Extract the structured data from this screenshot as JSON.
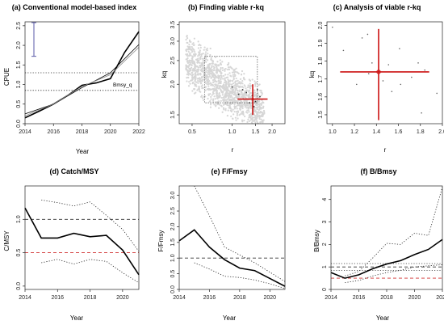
{
  "chart_data": [
    {
      "id": "a",
      "type": "line",
      "title": "(a) Conventional model-based index",
      "xlabel": "Year",
      "ylabel": "CPUE",
      "xlim": [
        2014,
        2022
      ],
      "ylim": [
        0,
        2.6
      ],
      "xticks": [
        2014,
        2016,
        2018,
        2020,
        2022
      ],
      "yticks": [
        0.0,
        0.5,
        1.0,
        1.5,
        2.0,
        2.5
      ],
      "series": [
        {
          "style": "solid-thick",
          "x": [
            2014,
            2015,
            2016,
            2017,
            2018,
            2019,
            2020,
            2021,
            2022
          ],
          "y": [
            0.15,
            0.32,
            0.5,
            0.72,
            0.98,
            1.04,
            1.15,
            1.82,
            2.35
          ]
        },
        {
          "style": "solid-thin",
          "x": [
            2014,
            2016,
            2018,
            2020,
            2022
          ],
          "y": [
            0.25,
            0.5,
            0.92,
            1.3,
            2.02
          ]
        },
        {
          "style": "solid-grey",
          "x": [
            2014,
            2016,
            2018,
            2020,
            2022
          ],
          "y": [
            0.2,
            0.5,
            0.95,
            1.25,
            1.95
          ]
        }
      ],
      "hlines": [
        {
          "y": 1.3,
          "style": "dotted"
        },
        {
          "y": 0.85,
          "style": "dotted"
        }
      ],
      "errorbar": {
        "y_low": 1.72,
        "y_high": 2.58,
        "color": "#5a5aa8"
      },
      "annotations": [
        {
          "text": "Bmsy_q",
          "x": 2019.1,
          "y": 1.07
        }
      ]
    },
    {
      "id": "b",
      "type": "scatter",
      "title": "(b) Finding viable r-kq",
      "xlabel": "r",
      "ylabel": "kq",
      "xscale": "log",
      "yscale": "log",
      "xlim": [
        0.4,
        2.5
      ],
      "ylim": [
        1.38,
        3.6
      ],
      "xticks": [
        0.5,
        1.0,
        1.5,
        2.0
      ],
      "yticks": [
        1.5,
        2.0,
        2.5,
        3.0,
        3.5
      ],
      "box": {
        "x": [
          0.62,
          1.55
        ],
        "y": [
          1.68,
          2.6
        ]
      },
      "best": {
        "r": 1.43,
        "kq": 1.74,
        "r_ci": [
          1.1,
          1.85
        ],
        "kq_ci": [
          1.5,
          2.0
        ]
      },
      "viable_points": [
        [
          1.0,
          1.95
        ],
        [
          1.12,
          1.82
        ],
        [
          1.2,
          1.9
        ],
        [
          1.28,
          1.85
        ],
        [
          1.35,
          1.68
        ],
        [
          1.42,
          1.8
        ],
        [
          1.5,
          1.7
        ],
        [
          1.55,
          1.9
        ],
        [
          1.62,
          1.78
        ],
        [
          1.22,
          1.74
        ],
        [
          1.46,
          1.62
        ]
      ]
    },
    {
      "id": "c",
      "type": "scatter",
      "title": "(c) Analysis of viable r-kq",
      "xlabel": "r",
      "ylabel": "kq",
      "xlim": [
        0.95,
        2.0
      ],
      "ylim": [
        1.45,
        2.02
      ],
      "xticks": [
        1.0,
        1.2,
        1.4,
        1.6,
        1.8,
        2.0
      ],
      "yticks": [
        1.5,
        1.6,
        1.7,
        1.8,
        1.9,
        2.0
      ],
      "best": {
        "r": 1.42,
        "kq": 1.74,
        "r_ci": [
          1.07,
          1.88
        ],
        "kq_ci": [
          1.47,
          1.98
        ]
      },
      "points": [
        [
          1.0,
          1.99
        ],
        [
          1.27,
          1.93
        ],
        [
          1.32,
          1.95
        ],
        [
          1.1,
          1.86
        ],
        [
          1.61,
          1.87
        ],
        [
          1.78,
          1.79
        ],
        [
          1.33,
          1.73
        ],
        [
          1.46,
          1.69
        ],
        [
          1.54,
          1.63
        ],
        [
          1.72,
          1.71
        ],
        [
          1.84,
          1.75
        ],
        [
          1.22,
          1.67
        ],
        [
          1.51,
          1.78
        ],
        [
          1.62,
          1.67
        ],
        [
          1.95,
          1.62
        ],
        [
          1.81,
          1.51
        ],
        [
          1.36,
          1.79
        ]
      ]
    },
    {
      "id": "d",
      "type": "line",
      "title": "(d) Catch/MSY",
      "xlabel": "Year",
      "ylabel": "C/MSY",
      "xlim": [
        2014,
        2021
      ],
      "ylim": [
        -0.05,
        1.5
      ],
      "xticks": [
        2014,
        2016,
        2018,
        2020
      ],
      "yticks": [
        0.0,
        0.5,
        1.0
      ],
      "series": [
        {
          "style": "solid-thick",
          "x": [
            2014,
            2015,
            2016,
            2017,
            2018,
            2019,
            2020,
            2021
          ],
          "y": [
            1.17,
            0.72,
            0.72,
            0.79,
            0.74,
            0.76,
            0.54,
            0.17
          ]
        },
        {
          "style": "dotted",
          "x": [
            2015,
            2016,
            2017,
            2018,
            2019,
            2020,
            2021
          ],
          "y": [
            1.29,
            1.25,
            1.2,
            1.26,
            1.06,
            0.85,
            0.52
          ]
        },
        {
          "style": "dotted",
          "x": [
            2015,
            2016,
            2017,
            2018,
            2019,
            2020,
            2021
          ],
          "y": [
            0.35,
            0.4,
            0.33,
            0.4,
            0.37,
            0.2,
            0.05
          ]
        }
      ],
      "hlines": [
        {
          "y": 1.0,
          "style": "dashed",
          "color": "#333333"
        },
        {
          "y": 0.5,
          "style": "dashed",
          "color": "#d03030"
        }
      ]
    },
    {
      "id": "e",
      "type": "line",
      "title": "(e) F/Fmsy",
      "xlabel": "Year",
      "ylabel": "F/Fmsy",
      "xlim": [
        2014,
        2021
      ],
      "ylim": [
        0,
        3.3
      ],
      "xticks": [
        2014,
        2016,
        2018,
        2020
      ],
      "yticks": [
        0.0,
        0.5,
        1.0,
        1.5,
        2.0,
        2.5,
        3.0
      ],
      "series": [
        {
          "style": "solid-thick",
          "x": [
            2014,
            2015,
            2016,
            2017,
            2018,
            2019,
            2020,
            2021
          ],
          "y": [
            1.55,
            1.9,
            1.35,
            0.95,
            0.68,
            0.6,
            0.35,
            0.1
          ]
        },
        {
          "style": "dotted",
          "x": [
            2015,
            2016,
            2017,
            2018,
            2019,
            2020,
            2021
          ],
          "y": [
            3.3,
            2.35,
            1.35,
            1.1,
            0.85,
            0.55,
            0.25
          ]
        },
        {
          "style": "dotted",
          "x": [
            2015,
            2016,
            2017,
            2018,
            2019,
            2020,
            2021
          ],
          "y": [
            0.85,
            0.65,
            0.42,
            0.38,
            0.3,
            0.18,
            0.03
          ]
        }
      ],
      "hlines": [
        {
          "y": 1.0,
          "style": "dashed",
          "color": "#333333"
        }
      ]
    },
    {
      "id": "f",
      "type": "line",
      "title": "(f) B/Bmsy",
      "xlabel": "Year",
      "ylabel": "B/Bmsy",
      "xlim": [
        2014,
        2022
      ],
      "ylim": [
        0,
        4.6
      ],
      "xticks": [
        2014,
        2016,
        2018,
        2020,
        2022
      ],
      "yticks": [
        0,
        1,
        2,
        3,
        4
      ],
      "series": [
        {
          "style": "solid-thick",
          "x": [
            2014,
            2015,
            2016,
            2017,
            2018,
            2019,
            2020,
            2021,
            2022
          ],
          "y": [
            0.75,
            0.5,
            0.65,
            0.92,
            1.13,
            1.28,
            1.55,
            1.78,
            2.22
          ]
        },
        {
          "style": "dotted",
          "x": [
            2015,
            2016,
            2017,
            2018,
            2019,
            2020,
            2021,
            2022
          ],
          "y": [
            0.6,
            0.8,
            1.4,
            2.05,
            2.0,
            2.5,
            2.4,
            4.55
          ]
        },
        {
          "style": "dotted",
          "x": [
            2015,
            2016,
            2017,
            2018,
            2019,
            2020,
            2021,
            2022
          ],
          "y": [
            0.3,
            0.4,
            0.6,
            0.75,
            0.85,
            1.0,
            1.05,
            1.1
          ]
        }
      ],
      "hlines": [
        {
          "y": 1.15,
          "style": "dotted",
          "color": "#333333"
        },
        {
          "y": 1.0,
          "style": "dashed",
          "color": "#333333"
        },
        {
          "y": 0.85,
          "style": "dotted",
          "color": "#333333"
        },
        {
          "y": 0.5,
          "style": "dashed",
          "color": "#d03030"
        }
      ]
    }
  ]
}
